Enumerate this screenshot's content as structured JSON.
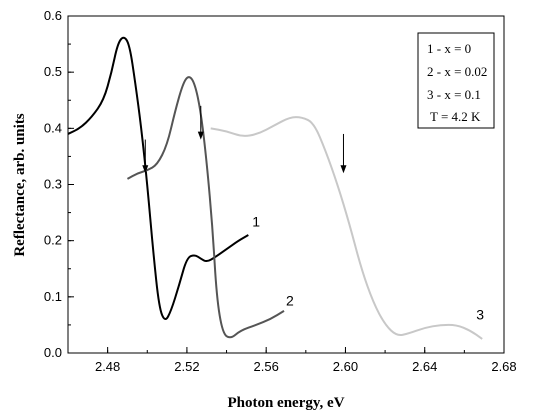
{
  "chart_data": {
    "type": "line",
    "xlabel": "Photon energy, eV",
    "ylabel": "Reflectance, arb. units",
    "xlim": [
      2.46,
      2.68
    ],
    "ylim": [
      0.0,
      0.6
    ],
    "xticks": [
      2.48,
      2.52,
      2.56,
      2.6,
      2.64,
      2.68
    ],
    "xtick_labels": [
      "2.48",
      "2.52",
      "2.56",
      "2.60",
      "2.64",
      "2.68"
    ],
    "yticks": [
      0.0,
      0.1,
      0.2,
      0.3,
      0.4,
      0.5,
      0.6
    ],
    "ytick_labels": [
      "0.0",
      "0.1",
      "0.2",
      "0.3",
      "0.4",
      "0.5",
      "0.6"
    ],
    "legend_position": "top-right",
    "legend_lines": [
      "1 - x = 0",
      "2 - x = 0.02",
      "3 - x = 0.1",
      "T = 4.2 K"
    ],
    "series": [
      {
        "label": "1",
        "color": "#000000",
        "label_at": [
          2.553,
          0.225
        ],
        "points": [
          [
            2.46,
            0.39
          ],
          [
            2.466,
            0.4
          ],
          [
            2.472,
            0.42
          ],
          [
            2.478,
            0.45
          ],
          [
            2.482,
            0.5
          ],
          [
            2.485,
            0.55
          ],
          [
            2.488,
            0.565
          ],
          [
            2.491,
            0.55
          ],
          [
            2.494,
            0.48
          ],
          [
            2.497,
            0.4
          ],
          [
            2.5,
            0.3
          ],
          [
            2.503,
            0.18
          ],
          [
            2.506,
            0.08
          ],
          [
            2.509,
            0.055
          ],
          [
            2.512,
            0.075
          ],
          [
            2.516,
            0.12
          ],
          [
            2.52,
            0.17
          ],
          [
            2.524,
            0.175
          ],
          [
            2.527,
            0.168
          ],
          [
            2.53,
            0.162
          ],
          [
            2.534,
            0.17
          ],
          [
            2.54,
            0.185
          ],
          [
            2.546,
            0.2
          ],
          [
            2.551,
            0.21
          ]
        ]
      },
      {
        "label": "2",
        "color": "#555555",
        "label_at": [
          2.57,
          0.085
        ],
        "points": [
          [
            2.49,
            0.31
          ],
          [
            2.495,
            0.32
          ],
          [
            2.5,
            0.325
          ],
          [
            2.505,
            0.335
          ],
          [
            2.51,
            0.37
          ],
          [
            2.514,
            0.43
          ],
          [
            2.518,
            0.48
          ],
          [
            2.521,
            0.495
          ],
          [
            2.524,
            0.48
          ],
          [
            2.527,
            0.43
          ],
          [
            2.53,
            0.34
          ],
          [
            2.533,
            0.22
          ],
          [
            2.535,
            0.1
          ],
          [
            2.538,
            0.035
          ],
          [
            2.542,
            0.025
          ],
          [
            2.547,
            0.04
          ],
          [
            2.555,
            0.05
          ],
          [
            2.562,
            0.06
          ],
          [
            2.569,
            0.075
          ]
        ]
      },
      {
        "label": "3",
        "color": "#c8c8c8",
        "label_at": [
          2.666,
          0.06
        ],
        "points": [
          [
            2.532,
            0.4
          ],
          [
            2.54,
            0.395
          ],
          [
            2.548,
            0.385
          ],
          [
            2.556,
            0.39
          ],
          [
            2.564,
            0.405
          ],
          [
            2.572,
            0.42
          ],
          [
            2.578,
            0.42
          ],
          [
            2.584,
            0.41
          ],
          [
            2.59,
            0.36
          ],
          [
            2.596,
            0.3
          ],
          [
            2.602,
            0.23
          ],
          [
            2.608,
            0.15
          ],
          [
            2.614,
            0.09
          ],
          [
            2.62,
            0.05
          ],
          [
            2.626,
            0.03
          ],
          [
            2.632,
            0.035
          ],
          [
            2.64,
            0.045
          ],
          [
            2.648,
            0.05
          ],
          [
            2.656,
            0.05
          ],
          [
            2.663,
            0.04
          ],
          [
            2.669,
            0.025
          ]
        ]
      }
    ],
    "arrows": [
      {
        "x": 2.499,
        "y_top": 0.38,
        "y_bottom": 0.32
      },
      {
        "x": 2.527,
        "y_top": 0.44,
        "y_bottom": 0.38
      },
      {
        "x": 2.599,
        "y_top": 0.39,
        "y_bottom": 0.32
      }
    ]
  }
}
